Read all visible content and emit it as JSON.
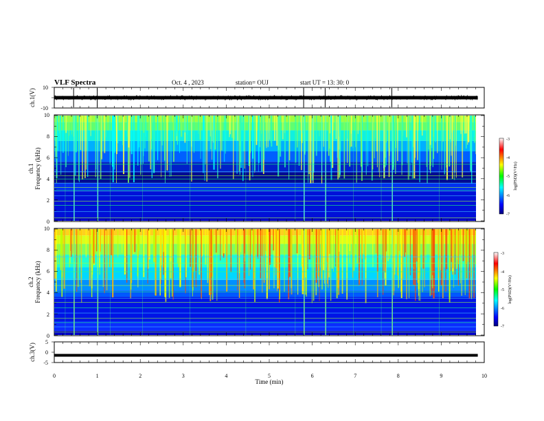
{
  "chart_data": [
    {
      "panel": "ch1-waveform",
      "type": "line",
      "ylabel": "ch.1(V)",
      "ylim": [
        -10,
        10
      ],
      "yticks": [
        10,
        -10
      ],
      "baseline_v": 0,
      "spikes_min": [
        0.45,
        1.0,
        5.8,
        6.3,
        7.85
      ],
      "xlim": [
        0,
        10
      ]
    },
    {
      "panel": "ch1-spectrogram",
      "type": "heatmap",
      "ylabel": "ch.1\nFrequency (kHz)",
      "ylim": [
        0,
        10
      ],
      "yticks": [
        0,
        2,
        4,
        6,
        8,
        10
      ],
      "xlim": [
        0,
        10
      ],
      "data_end_min": 9.85,
      "colorbar": {
        "label": "log(PSD)(V²/Hz)",
        "range": [
          -7,
          -3
        ],
        "ticks": [
          -3,
          -4,
          -5,
          -6,
          -7
        ]
      }
    },
    {
      "panel": "ch2-spectrogram",
      "type": "heatmap",
      "ylabel": "ch.2\nFrequency (kHz)",
      "ylim": [
        0,
        10
      ],
      "yticks": [
        0,
        2,
        4,
        6,
        8,
        10
      ],
      "xlim": [
        0,
        10
      ],
      "data_end_min": 9.85,
      "colorbar": {
        "label": "log(PSD)(V²/Hz)",
        "range": [
          -7,
          -3
        ],
        "ticks": [
          -3,
          -4,
          -5,
          -6,
          -7
        ]
      }
    },
    {
      "panel": "ch3-waveform",
      "type": "line",
      "ylabel": "ch.3(V)",
      "ylim": [
        -5,
        5
      ],
      "yticks": [
        5,
        0,
        -5
      ],
      "baseline_v": -1.5,
      "xlim": [
        0,
        10
      ]
    }
  ],
  "header": {
    "title": "VLF Spectra",
    "date": "Oct. 4 , 2023",
    "station": "station= OUJ",
    "start_ut": "start  UT =   13: 30: 0"
  },
  "x_axis": {
    "label": "Time  (min)",
    "ticks": [
      "0",
      "1",
      "2",
      "3",
      "4",
      "5",
      "6",
      "7",
      "8",
      "9",
      "10"
    ]
  },
  "labels": {
    "ch1": "ch.1(V)",
    "ch1_spec_a": "ch.1",
    "ch1_spec_b": "Frequency  (kHz)",
    "ch2_spec_a": "ch.2",
    "ch2_spec_b": "Frequency  (kHz)",
    "ch3": "ch.3(V)",
    "cbar1": "log(PSD)(V²/Hz)",
    "cbar2": "log(PSD)(V²/Hz)"
  },
  "tick_labels": {
    "ch1": [
      "10",
      "-10"
    ],
    "spec1": [
      "0",
      "2",
      "4",
      "6",
      "8",
      "10"
    ],
    "spec2": [
      "0",
      "2",
      "4",
      "6",
      "8",
      "10"
    ],
    "ch3": [
      "5",
      "0",
      "-5"
    ],
    "cbar1": [
      "-3",
      "-4",
      "-5",
      "-6",
      "-7"
    ],
    "cbar2": [
      "-3",
      "-4",
      "-5",
      "-6",
      "-7"
    ]
  }
}
